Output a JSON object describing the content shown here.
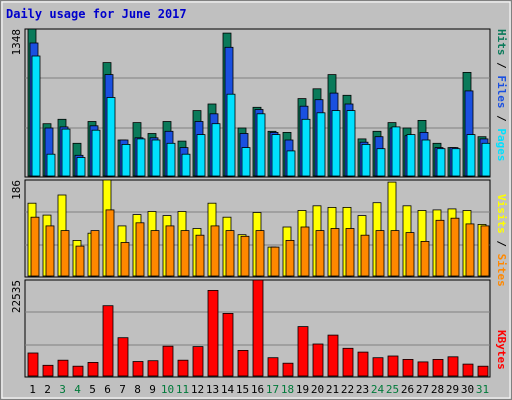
{
  "chart_data": {
    "type": "bar",
    "title": "Daily usage for June 2017",
    "x": [
      "1",
      "2",
      "3",
      "4",
      "5",
      "6",
      "7",
      "8",
      "9",
      "10",
      "11",
      "12",
      "13",
      "14",
      "15",
      "16",
      "17",
      "18",
      "19",
      "20",
      "21",
      "22",
      "23",
      "24",
      "25",
      "26",
      "27",
      "28",
      "29",
      "30",
      "31"
    ],
    "weekend_days": [
      "3",
      "4",
      "10",
      "11",
      "17",
      "18",
      "24",
      "25",
      "31"
    ],
    "colors": {
      "title": "#0000cc",
      "hits": "#0a7a5a",
      "files": "#1a50e0",
      "pages": "#00e0ff",
      "visits": "#ffff00",
      "sites": "#ff8800",
      "kbytes": "#ff0000",
      "plot_bg": "#c0c0c0",
      "weekend_label": "#007a3a",
      "weekday_label": "#000000"
    },
    "panels": [
      {
        "name": "hits-files-pages",
        "ymax_label": "1348",
        "ymax": 1348,
        "legend": [
          {
            "label": "Pages",
            "color": "#00e0ff"
          },
          {
            "label": "Files",
            "color": "#1a50e0"
          },
          {
            "label": "Hits",
            "color": "#0a7a5a"
          }
        ],
        "series": [
          {
            "name": "Hits",
            "values": [
              1348,
              480,
              520,
              300,
              500,
              1040,
              330,
              490,
              390,
              500,
              320,
              600,
              660,
              1310,
              440,
              630,
              410,
              400,
              710,
              800,
              930,
              740,
              340,
              410,
              490,
              440,
              510,
              300,
              260,
              950,
              360
            ]
          },
          {
            "name": "Files",
            "values": [
              1220,
              440,
              450,
              190,
              460,
              930,
              330,
              350,
              350,
              410,
              260,
              500,
              570,
              1180,
              390,
              610,
              400,
              330,
              640,
              700,
              760,
              660,
              310,
              360,
              440,
              370,
              400,
              260,
              260,
              780,
              340
            ]
          },
          {
            "name": "Pages",
            "values": [
              1100,
              200,
              430,
              170,
              420,
              720,
              290,
              340,
              330,
              300,
              200,
              380,
              480,
              750,
              260,
              570,
              380,
              230,
              520,
              580,
              600,
              600,
              290,
              250,
              450,
              380,
              330,
              250,
              250,
              380,
              300
            ]
          }
        ]
      },
      {
        "name": "visits-sites",
        "ymax_label": "186",
        "ymax": 186,
        "legend": [
          {
            "label": "Sites",
            "color": "#ff8800"
          },
          {
            "label": "Visits",
            "color": "#ffff00"
          }
        ],
        "series": [
          {
            "name": "Visits",
            "values": [
              141,
              118,
              157,
              69,
              83,
              186,
              97,
              119,
              125,
              117,
              125,
              92,
              141,
              114,
              80,
              123,
              56,
              95,
              127,
              136,
              133,
              133,
              117,
              142,
              182,
              136,
              127,
              128,
              130,
              127,
              100
            ]
          },
          {
            "name": "Sites",
            "values": [
              114,
              97,
              88,
              58,
              88,
              128,
              65,
              103,
              88,
              97,
              88,
              79,
              97,
              88,
              77,
              88,
              56,
              69,
              95,
              88,
              92,
              92,
              79,
              88,
              88,
              84,
              67,
              108,
              112,
              101,
              97
            ]
          }
        ]
      },
      {
        "name": "kbytes",
        "ymax_label": "22535",
        "ymax": 22535,
        "legend": [
          {
            "label": "KBytes",
            "color": "#ff0000"
          }
        ],
        "series": [
          {
            "name": "KBytes",
            "values": [
              5400,
              2500,
              3700,
              2300,
              3200,
              16500,
              9000,
              3400,
              3600,
              7000,
              3700,
              6900,
              20100,
              14700,
              6000,
              22535,
              4300,
              3000,
              11600,
              7500,
              9600,
              6500,
              5600,
              4300,
              4700,
              3900,
              3300,
              3900,
              4500,
              2800,
              2300
            ]
          }
        ]
      }
    ]
  }
}
